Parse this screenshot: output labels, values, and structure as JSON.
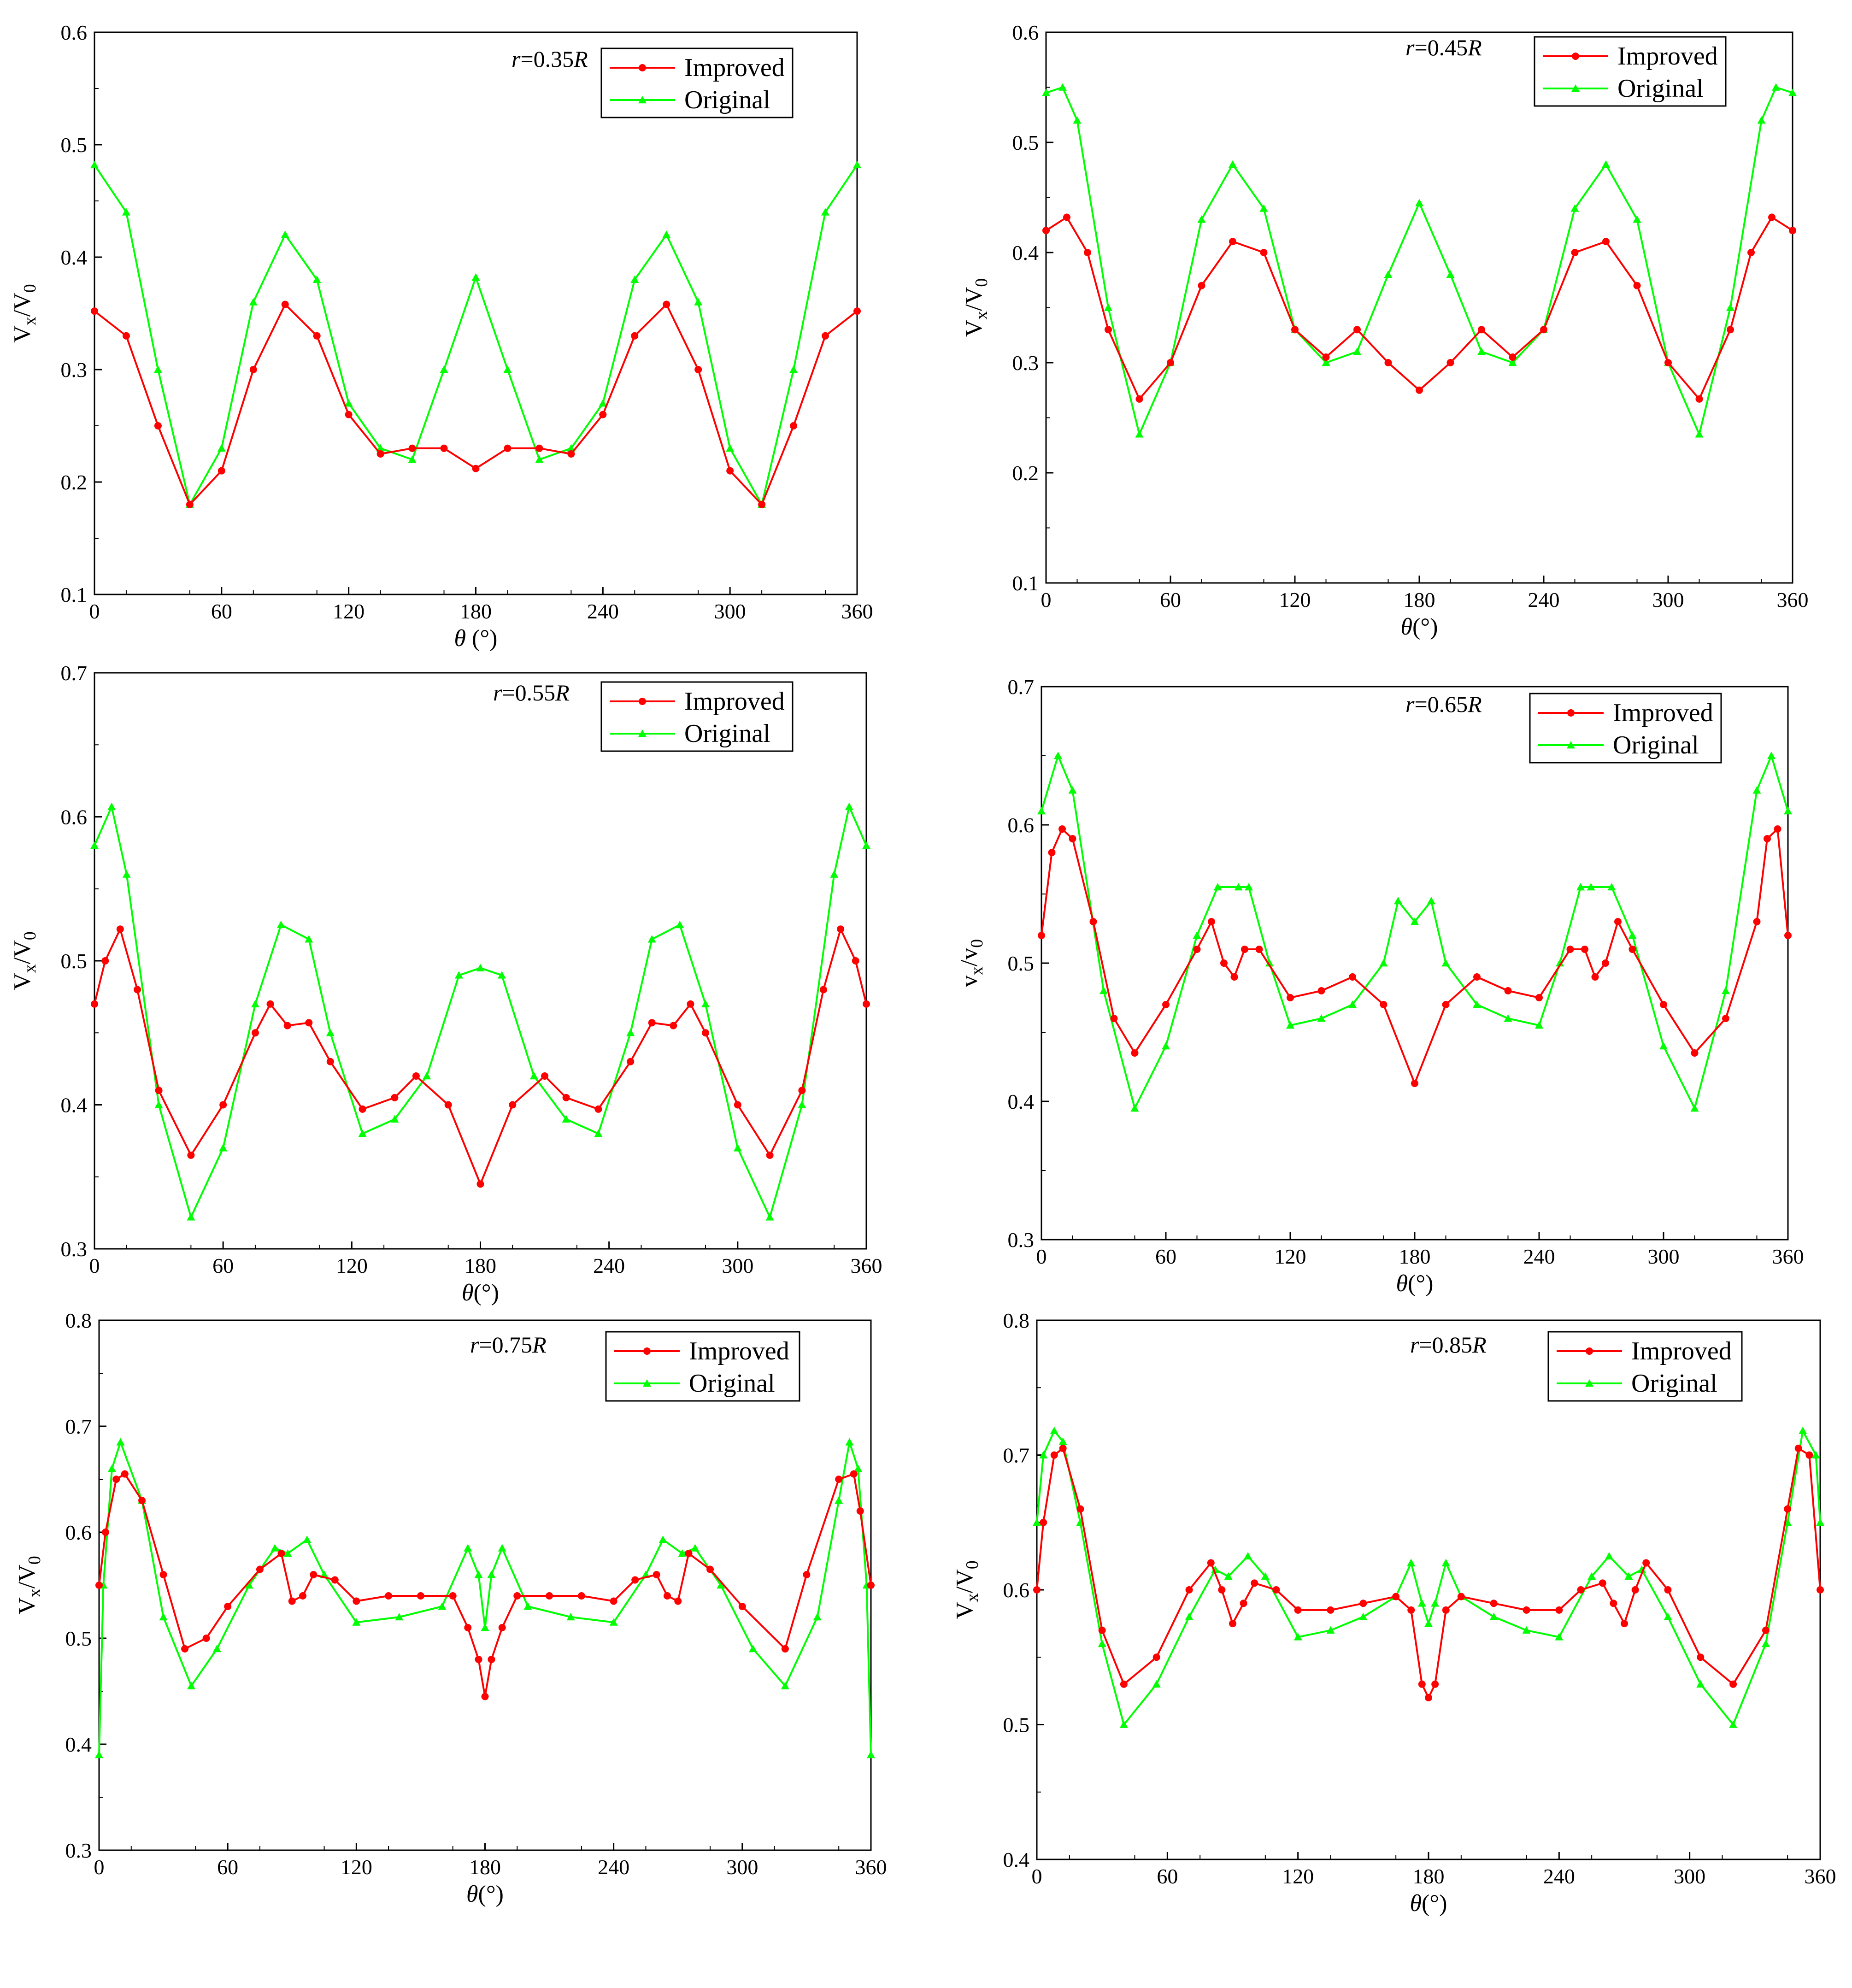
{
  "figure": {
    "series_names": [
      "Improved",
      "Original"
    ],
    "colors": {
      "improved": "#ff0000",
      "original": "#00ff00",
      "axis": "#000000"
    }
  },
  "chart_data": [
    {
      "type": "line",
      "annotation": "r=0.35R",
      "xlabel": "θ (°)",
      "ylabel": "Vx/V0",
      "xlim": [
        0,
        360
      ],
      "ylim": [
        0.1,
        0.6
      ],
      "xticks": [
        0,
        60,
        120,
        180,
        240,
        300,
        360
      ],
      "yticks": [
        0.1,
        0.2,
        0.3,
        0.4,
        0.5,
        0.6
      ],
      "legend": [
        "Improved",
        "Original"
      ],
      "legend_position": "top-right",
      "series": [
        {
          "name": "Improved",
          "x": [
            0,
            15,
            30,
            45,
            60,
            75,
            90,
            105,
            120,
            135,
            150,
            165,
            180,
            195,
            210,
            225,
            240,
            255,
            270,
            285,
            300,
            315,
            330,
            345,
            360
          ],
          "y": [
            0.352,
            0.33,
            0.25,
            0.18,
            0.21,
            0.3,
            0.358,
            0.33,
            0.26,
            0.225,
            0.23,
            0.23,
            0.212,
            0.23,
            0.23,
            0.225,
            0.26,
            0.33,
            0.358,
            0.3,
            0.21,
            0.18,
            0.25,
            0.33,
            0.352
          ]
        },
        {
          "name": "Original",
          "x": [
            0,
            15,
            30,
            45,
            60,
            75,
            90,
            105,
            120,
            135,
            150,
            165,
            180,
            195,
            210,
            225,
            240,
            255,
            270,
            285,
            300,
            315,
            330,
            345,
            360
          ],
          "y": [
            0.482,
            0.44,
            0.3,
            0.18,
            0.23,
            0.36,
            0.42,
            0.38,
            0.27,
            0.23,
            0.22,
            0.3,
            0.382,
            0.3,
            0.22,
            0.23,
            0.27,
            0.38,
            0.42,
            0.36,
            0.23,
            0.18,
            0.3,
            0.44,
            0.482
          ]
        }
      ]
    },
    {
      "type": "line",
      "annotation": "r=0.45R",
      "xlabel": "θ(°)",
      "ylabel": "Vx/V0",
      "xlim": [
        0,
        360
      ],
      "ylim": [
        0.1,
        0.6
      ],
      "xticks": [
        0,
        60,
        120,
        180,
        240,
        300,
        360
      ],
      "yticks": [
        0.1,
        0.2,
        0.3,
        0.4,
        0.5,
        0.6
      ],
      "legend": [
        "Improved",
        "Original"
      ],
      "legend_position": "top-right",
      "series": [
        {
          "name": "Improved",
          "x": [
            0,
            10,
            20,
            30,
            45,
            60,
            75,
            90,
            105,
            120,
            135,
            150,
            165,
            180,
            195,
            210,
            225,
            240,
            255,
            270,
            285,
            300,
            315,
            330,
            340,
            350,
            360
          ],
          "y": [
            0.42,
            0.432,
            0.4,
            0.33,
            0.267,
            0.3,
            0.37,
            0.41,
            0.4,
            0.33,
            0.305,
            0.33,
            0.3,
            0.275,
            0.3,
            0.33,
            0.305,
            0.33,
            0.4,
            0.41,
            0.37,
            0.3,
            0.267,
            0.33,
            0.4,
            0.432,
            0.42
          ]
        },
        {
          "name": "Original",
          "x": [
            0,
            8,
            15,
            30,
            45,
            60,
            75,
            90,
            105,
            120,
            135,
            150,
            165,
            180,
            195,
            210,
            225,
            240,
            255,
            270,
            285,
            300,
            315,
            330,
            345,
            352,
            360
          ],
          "y": [
            0.545,
            0.55,
            0.52,
            0.35,
            0.235,
            0.3,
            0.43,
            0.48,
            0.44,
            0.33,
            0.3,
            0.31,
            0.38,
            0.445,
            0.38,
            0.31,
            0.3,
            0.33,
            0.44,
            0.48,
            0.43,
            0.3,
            0.235,
            0.35,
            0.52,
            0.55,
            0.545
          ]
        }
      ]
    },
    {
      "type": "line",
      "annotation": "r=0.55R",
      "xlabel": "θ(°)",
      "ylabel": "Vx/V0",
      "xlim": [
        0,
        360
      ],
      "ylim": [
        0.3,
        0.7
      ],
      "xticks": [
        0,
        60,
        120,
        180,
        240,
        300,
        360
      ],
      "yticks": [
        0.3,
        0.4,
        0.5,
        0.6,
        0.7
      ],
      "legend": [
        "Improved",
        "Original"
      ],
      "legend_position": "top-right",
      "series": [
        {
          "name": "Improved",
          "x": [
            0,
            5,
            12,
            20,
            30,
            45,
            60,
            75,
            82,
            90,
            100,
            110,
            125,
            140,
            150,
            165,
            180,
            195,
            210,
            220,
            235,
            250,
            260,
            270,
            278,
            285,
            300,
            315,
            330,
            340,
            348,
            355,
            360
          ],
          "y": [
            0.47,
            0.5,
            0.522,
            0.48,
            0.41,
            0.365,
            0.4,
            0.45,
            0.47,
            0.455,
            0.457,
            0.43,
            0.397,
            0.405,
            0.42,
            0.4,
            0.345,
            0.4,
            0.42,
            0.405,
            0.397,
            0.43,
            0.457,
            0.455,
            0.47,
            0.45,
            0.4,
            0.365,
            0.41,
            0.48,
            0.522,
            0.5,
            0.47
          ]
        },
        {
          "name": "Original",
          "x": [
            0,
            8,
            15,
            30,
            45,
            60,
            75,
            87,
            100,
            110,
            125,
            140,
            155,
            170,
            180,
            190,
            205,
            220,
            235,
            250,
            260,
            273,
            285,
            300,
            315,
            330,
            345,
            352,
            360
          ],
          "y": [
            0.58,
            0.607,
            0.56,
            0.4,
            0.322,
            0.37,
            0.47,
            0.525,
            0.515,
            0.45,
            0.38,
            0.39,
            0.42,
            0.49,
            0.495,
            0.49,
            0.42,
            0.39,
            0.38,
            0.45,
            0.515,
            0.525,
            0.47,
            0.37,
            0.322,
            0.4,
            0.56,
            0.607,
            0.58
          ]
        }
      ]
    },
    {
      "type": "line",
      "annotation": "r=0.65R",
      "xlabel": "θ(°)",
      "ylabel": "vx/v0",
      "xlim": [
        0,
        360
      ],
      "ylim": [
        0.3,
        0.7
      ],
      "xticks": [
        0,
        60,
        120,
        180,
        240,
        300,
        360
      ],
      "yticks": [
        0.3,
        0.4,
        0.5,
        0.6,
        0.7
      ],
      "legend": [
        "Improved",
        "Original"
      ],
      "legend_position": "top-right",
      "series": [
        {
          "name": "Improved",
          "x": [
            0,
            5,
            10,
            15,
            25,
            35,
            45,
            60,
            75,
            82,
            88,
            93,
            98,
            105,
            120,
            135,
            150,
            165,
            180,
            195,
            210,
            225,
            240,
            255,
            262,
            267,
            272,
            278,
            285,
            300,
            315,
            330,
            345,
            350,
            355,
            360
          ],
          "y": [
            0.52,
            0.58,
            0.597,
            0.59,
            0.53,
            0.46,
            0.435,
            0.47,
            0.51,
            0.53,
            0.5,
            0.49,
            0.51,
            0.51,
            0.475,
            0.48,
            0.49,
            0.47,
            0.413,
            0.47,
            0.49,
            0.48,
            0.475,
            0.51,
            0.51,
            0.49,
            0.5,
            0.53,
            0.51,
            0.47,
            0.435,
            0.46,
            0.53,
            0.59,
            0.597,
            0.52
          ]
        },
        {
          "name": "Original",
          "x": [
            0,
            8,
            15,
            30,
            45,
            60,
            75,
            85,
            95,
            100,
            110,
            120,
            135,
            150,
            165,
            172,
            180,
            188,
            195,
            210,
            225,
            240,
            250,
            260,
            265,
            275,
            285,
            300,
            315,
            330,
            345,
            352,
            360
          ],
          "y": [
            0.61,
            0.65,
            0.625,
            0.48,
            0.395,
            0.44,
            0.52,
            0.555,
            0.555,
            0.555,
            0.5,
            0.455,
            0.46,
            0.47,
            0.5,
            0.545,
            0.53,
            0.545,
            0.5,
            0.47,
            0.46,
            0.455,
            0.5,
            0.555,
            0.555,
            0.555,
            0.52,
            0.44,
            0.395,
            0.48,
            0.625,
            0.65,
            0.61
          ]
        }
      ]
    },
    {
      "type": "line",
      "annotation": "r=0.75R",
      "xlabel": "θ(°)",
      "ylabel": "Vx/V0",
      "xlim": [
        0,
        360
      ],
      "ylim": [
        0.3,
        0.8
      ],
      "xticks": [
        0,
        60,
        120,
        180,
        240,
        300,
        360
      ],
      "yticks": [
        0.3,
        0.4,
        0.5,
        0.6,
        0.7,
        0.8
      ],
      "legend": [
        "Improved",
        "Original"
      ],
      "legend_position": "top-right",
      "series": [
        {
          "name": "Improved",
          "x": [
            0,
            3,
            8,
            12,
            20,
            30,
            40,
            50,
            60,
            75,
            85,
            90,
            95,
            100,
            110,
            120,
            135,
            150,
            165,
            172,
            177,
            180,
            183,
            188,
            195,
            210,
            225,
            240,
            250,
            260,
            265,
            270,
            275,
            285,
            300,
            320,
            330,
            345,
            352,
            355,
            360
          ],
          "y": [
            0.55,
            0.6,
            0.65,
            0.655,
            0.63,
            0.56,
            0.49,
            0.5,
            0.53,
            0.565,
            0.58,
            0.535,
            0.54,
            0.56,
            0.555,
            0.535,
            0.54,
            0.54,
            0.54,
            0.51,
            0.48,
            0.445,
            0.48,
            0.51,
            0.54,
            0.54,
            0.54,
            0.535,
            0.555,
            0.56,
            0.54,
            0.535,
            0.58,
            0.565,
            0.53,
            0.49,
            0.56,
            0.65,
            0.655,
            0.62,
            0.55
          ]
        },
        {
          "name": "Original",
          "x": [
            0,
            2,
            6,
            10,
            20,
            30,
            43,
            55,
            70,
            82,
            88,
            97,
            105,
            120,
            140,
            160,
            172,
            177,
            180,
            183,
            188,
            200,
            220,
            240,
            255,
            263,
            272,
            278,
            290,
            305,
            320,
            335,
            345,
            350,
            354,
            358,
            360
          ],
          "y": [
            0.39,
            0.55,
            0.66,
            0.685,
            0.63,
            0.52,
            0.455,
            0.49,
            0.55,
            0.585,
            0.58,
            0.593,
            0.56,
            0.515,
            0.52,
            0.53,
            0.585,
            0.56,
            0.51,
            0.56,
            0.585,
            0.53,
            0.52,
            0.515,
            0.56,
            0.593,
            0.58,
            0.585,
            0.55,
            0.49,
            0.455,
            0.52,
            0.63,
            0.685,
            0.66,
            0.55,
            0.39
          ]
        }
      ]
    },
    {
      "type": "line",
      "annotation": "r=0.85R",
      "xlabel": "θ(°)",
      "ylabel": "Vx/V0",
      "xlim": [
        0,
        360
      ],
      "ylim": [
        0.4,
        0.8
      ],
      "xticks": [
        0,
        60,
        120,
        180,
        240,
        300,
        360
      ],
      "yticks": [
        0.4,
        0.5,
        0.6,
        0.7,
        0.8
      ],
      "legend": [
        "Improved",
        "Original"
      ],
      "legend_position": "top-right",
      "series": [
        {
          "name": "Improved",
          "x": [
            0,
            3,
            8,
            12,
            20,
            30,
            40,
            55,
            70,
            80,
            85,
            90,
            95,
            100,
            110,
            120,
            135,
            150,
            165,
            172,
            177,
            180,
            183,
            188,
            195,
            210,
            225,
            240,
            250,
            260,
            265,
            270,
            275,
            280,
            290,
            305,
            320,
            335,
            345,
            350,
            355,
            360
          ],
          "y": [
            0.6,
            0.65,
            0.7,
            0.705,
            0.66,
            0.57,
            0.53,
            0.55,
            0.6,
            0.62,
            0.6,
            0.575,
            0.59,
            0.605,
            0.6,
            0.585,
            0.585,
            0.59,
            0.595,
            0.585,
            0.53,
            0.52,
            0.53,
            0.585,
            0.595,
            0.59,
            0.585,
            0.585,
            0.6,
            0.605,
            0.59,
            0.575,
            0.6,
            0.62,
            0.6,
            0.55,
            0.53,
            0.57,
            0.66,
            0.705,
            0.7,
            0.6
          ]
        },
        {
          "name": "Original",
          "x": [
            0,
            3,
            8,
            12,
            20,
            30,
            40,
            55,
            70,
            82,
            88,
            97,
            105,
            120,
            135,
            150,
            165,
            172,
            177,
            180,
            183,
            188,
            195,
            210,
            225,
            240,
            255,
            263,
            272,
            278,
            290,
            305,
            320,
            335,
            345,
            352,
            358,
            360
          ],
          "y": [
            0.65,
            0.7,
            0.718,
            0.71,
            0.65,
            0.56,
            0.5,
            0.53,
            0.58,
            0.615,
            0.61,
            0.625,
            0.61,
            0.565,
            0.57,
            0.58,
            0.595,
            0.62,
            0.59,
            0.575,
            0.59,
            0.62,
            0.595,
            0.58,
            0.57,
            0.565,
            0.61,
            0.625,
            0.61,
            0.615,
            0.58,
            0.53,
            0.5,
            0.56,
            0.65,
            0.718,
            0.7,
            0.65
          ]
        }
      ]
    }
  ]
}
